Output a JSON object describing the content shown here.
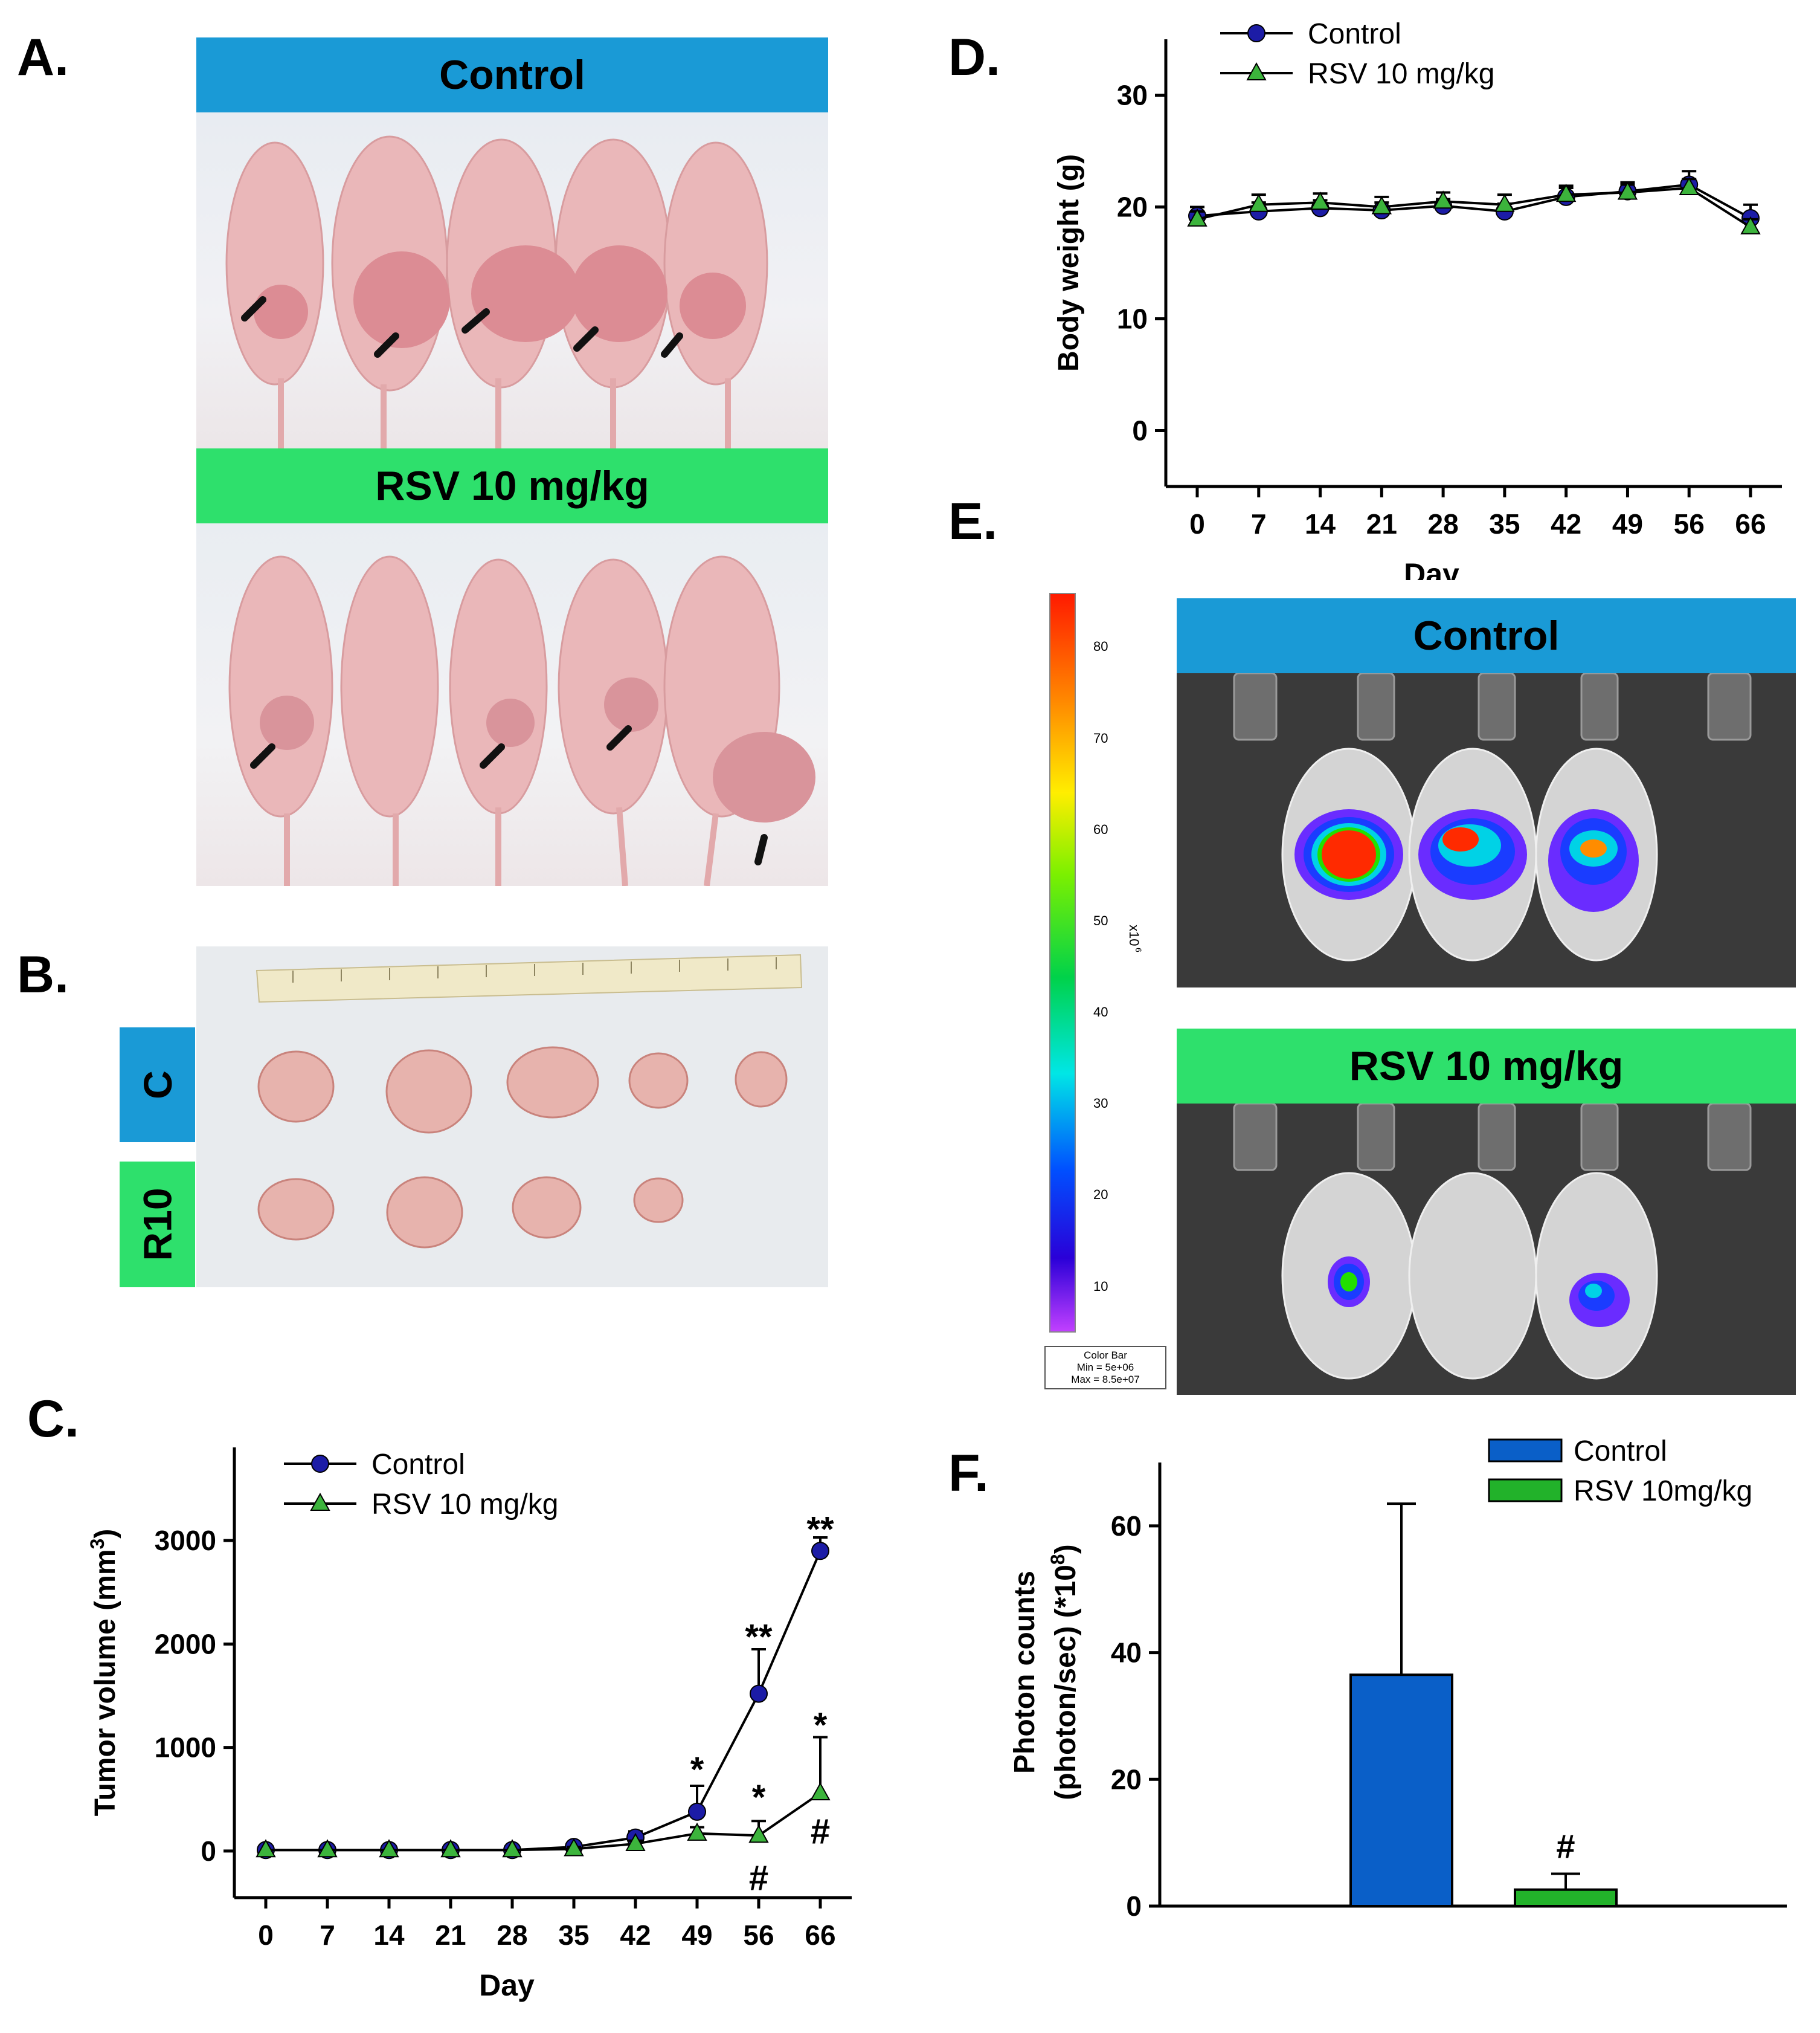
{
  "panels": {
    "a": {
      "letter": "A.",
      "banner_top": "Control",
      "banner_bottom": "RSV 10 mg/kg"
    },
    "b": {
      "letter": "B.",
      "label_c": "C",
      "label_r10": "R10"
    },
    "c": {
      "letter": "C."
    },
    "d": {
      "letter": "D."
    },
    "e": {
      "letter": "E.",
      "banner_top": "Control",
      "banner_bottom": "RSV 10 mg/kg",
      "colorbar": {
        "ticks": [
          "80",
          "70",
          "60",
          "50",
          "40",
          "30",
          "20",
          "10"
        ],
        "unit": "x10",
        "unit_exp": "6",
        "legend_title": "Color Bar",
        "legend_min": "Min = 5e+06",
        "legend_max": "Max = 8.5e+07"
      }
    },
    "f": {
      "letter": "F."
    }
  },
  "colors": {
    "blue_banner": "#1a9ad6",
    "green_banner": "#2ee06c",
    "control_line": "#1c1ca6",
    "rsv_line": "#3cb43c",
    "bar_blue": "#0a5fc8",
    "bar_green": "#22b22a"
  },
  "chart_data": [
    {
      "id": "C",
      "type": "line",
      "xlabel": "Day",
      "ylabel": "Tumor volume (mm",
      "ylabel_sup": "3",
      "ylabel_close": ")",
      "categories": [
        "0",
        "7",
        "14",
        "21",
        "28",
        "35",
        "42",
        "49",
        "56",
        "66"
      ],
      "ylim": [
        -450,
        3900
      ],
      "yticks": [
        "0",
        "1000",
        "2000",
        "3000"
      ],
      "ytick_values": [
        0,
        1000,
        2000,
        3000
      ],
      "series": [
        {
          "name": "Control",
          "values": [
            10,
            10,
            10,
            10,
            10,
            40,
            130,
            380,
            1520,
            2900
          ],
          "errors": [
            0,
            0,
            0,
            0,
            0,
            30,
            60,
            250,
            430,
            130
          ]
        },
        {
          "name": "RSV 10 mg/kg",
          "values": [
            10,
            10,
            10,
            10,
            10,
            20,
            70,
            170,
            150,
            560
          ],
          "errors": [
            0,
            0,
            0,
            0,
            0,
            20,
            30,
            60,
            140,
            540
          ]
        }
      ],
      "annotations": [
        {
          "x": "49",
          "y": 800,
          "text": "*"
        },
        {
          "x": "56",
          "y": 2080,
          "text": "**"
        },
        {
          "x": "66",
          "y": 3120,
          "text": "**"
        },
        {
          "x": "56",
          "y": 530,
          "text": "*"
        },
        {
          "x": "56",
          "y": -250,
          "text": "#"
        },
        {
          "x": "66",
          "y": 1230,
          "text": "*"
        },
        {
          "x": "66",
          "y": 200,
          "text": "#"
        }
      ]
    },
    {
      "id": "D",
      "type": "line",
      "xlabel": "Day",
      "ylabel": "Body  weight (g)",
      "categories": [
        "0",
        "7",
        "14",
        "21",
        "28",
        "35",
        "42",
        "49",
        "56",
        "66"
      ],
      "ylim": [
        -5,
        35
      ],
      "yticks": [
        "0",
        "10",
        "20",
        "30"
      ],
      "ytick_values": [
        0,
        10,
        20,
        30
      ],
      "series": [
        {
          "name": "Control",
          "values": [
            19.2,
            19.6,
            19.9,
            19.7,
            20.1,
            19.6,
            20.9,
            21.4,
            22.0,
            19.0
          ],
          "errors": [
            0.8,
            0.8,
            0.7,
            0.7,
            0.6,
            0.7,
            0.8,
            0.8,
            1.2,
            1.2
          ]
        },
        {
          "name": "RSV 10 mg/kg",
          "values": [
            18.9,
            20.2,
            20.4,
            20.0,
            20.5,
            20.2,
            21.1,
            21.3,
            21.7,
            18.2
          ],
          "errors": [
            0.7,
            0.9,
            0.8,
            0.9,
            0.8,
            0.9,
            0.8,
            0.7,
            0.8,
            0.7
          ]
        }
      ]
    },
    {
      "id": "F",
      "type": "bar",
      "ylabel_line1": "Photon counts",
      "ylabel_line2": "(photon/sec) (*10",
      "ylabel_sup": "8",
      "ylabel_close": ")",
      "categories": [
        "Control",
        "RSV 10mg/kg"
      ],
      "values": [
        36.5,
        2.6
      ],
      "errors": [
        27,
        2.5
      ],
      "ylim": [
        0,
        70
      ],
      "yticks": [
        "0",
        "20",
        "40",
        "60"
      ],
      "ytick_values": [
        0,
        20,
        40,
        60
      ],
      "annotations": [
        {
          "category": "RSV 10mg/kg",
          "text": "#"
        }
      ]
    }
  ]
}
